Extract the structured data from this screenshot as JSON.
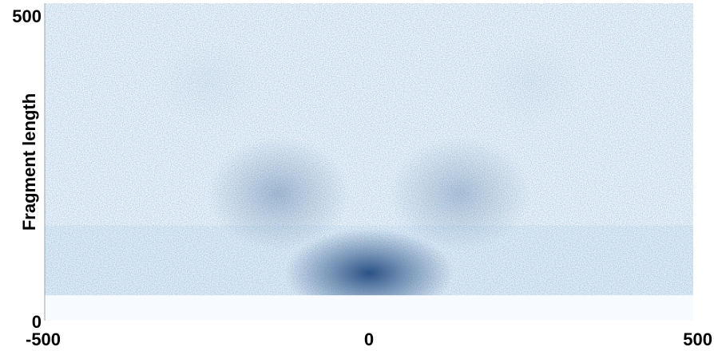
{
  "chart_data": {
    "type": "heatmap",
    "title": "",
    "xlabel": "",
    "ylabel": "Fragment length",
    "xlim": [
      -500,
      500
    ],
    "ylim": [
      0,
      500
    ],
    "x_ticks": [
      {
        "value": -500,
        "label": "-500"
      },
      {
        "value": 0,
        "label": "0"
      },
      {
        "value": 500,
        "label": "500"
      }
    ],
    "y_ticks": [
      {
        "value": 0,
        "label": "0"
      },
      {
        "value": 500,
        "label": "500"
      }
    ],
    "grid": false,
    "colormap": "Blues",
    "color_low": "#f4f8fd",
    "color_high": "#08306b",
    "density_peaks": [
      {
        "x": 0,
        "y": 75,
        "intensity": 1.0
      },
      {
        "x": -140,
        "y": 200,
        "intensity": 0.55
      },
      {
        "x": 140,
        "y": 200,
        "intensity": 0.5
      },
      {
        "x": -250,
        "y": 375,
        "intensity": 0.15
      },
      {
        "x": 250,
        "y": 375,
        "intensity": 0.15
      }
    ],
    "min_fragment_length": 40
  }
}
